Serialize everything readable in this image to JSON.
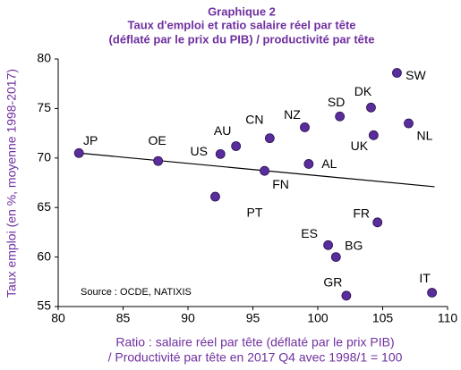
{
  "chart_data": {
    "type": "scatter",
    "title": [
      "Graphique 2",
      "Taux d'emploi et ratio salaire réel par tête",
      "(déflaté par le prix du PIB) / productivité par tête"
    ],
    "xlabel": [
      "Ratio : salaire réel par tête (déflaté par le prix PIB)",
      "/ Productivité par tête en 2017 Q4 avec 1998/1 = 100"
    ],
    "ylabel": "Taux emploi (en %, moyenne 1998-2017)",
    "annotation": "Source : OCDE, NATIXIS",
    "labels": [
      "JP",
      "OE",
      "US",
      "AU",
      "PT",
      "CN",
      "FN",
      "NZ",
      "AL",
      "SD",
      "DK",
      "SW",
      "UK",
      "NL",
      "FR",
      "ES",
      "BG",
      "GR",
      "IT"
    ],
    "x": [
      81.6,
      87.7,
      92.5,
      93.7,
      92.1,
      96.3,
      95.9,
      99.0,
      99.3,
      101.7,
      104.1,
      106.1,
      104.3,
      107.0,
      104.6,
      100.8,
      101.4,
      102.2,
      108.8
    ],
    "y": [
      70.5,
      69.7,
      70.4,
      71.2,
      66.1,
      72.0,
      68.7,
      73.1,
      69.4,
      74.2,
      75.1,
      78.6,
      72.3,
      73.5,
      63.5,
      61.2,
      60.0,
      56.1,
      56.4
    ],
    "color": "#5a2d9c",
    "trendline": {
      "x": [
        81.6,
        109
      ],
      "y": [
        70.5,
        67.1
      ],
      "color": "#000000"
    },
    "xlim": [
      80,
      110
    ],
    "xticks": [
      80,
      85,
      90,
      95,
      100,
      105,
      110
    ],
    "ylim": [
      55,
      80
    ],
    "yticks": [
      55,
      60,
      65,
      70,
      75,
      80
    ],
    "grid": false
  }
}
